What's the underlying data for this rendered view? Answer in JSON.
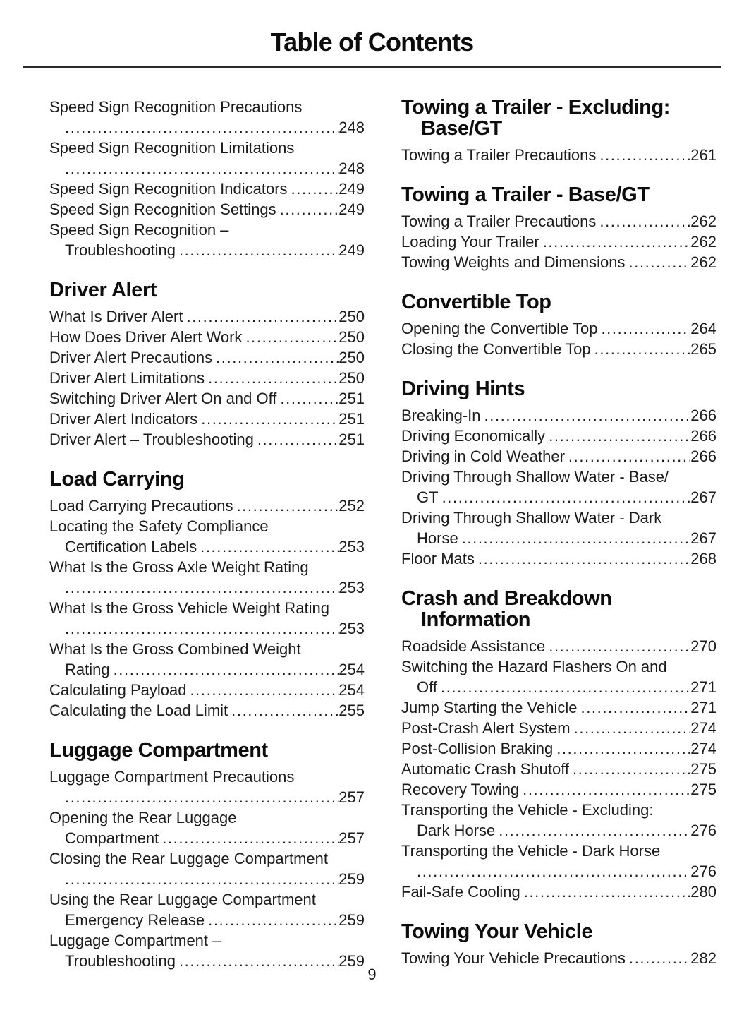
{
  "page": {
    "title": "Table of Contents",
    "page_number": "9",
    "text_color": "#1c1c1c"
  },
  "columns": [
    {
      "sections": [
        {
          "heading": null,
          "entries": [
            {
              "line1": "Speed Sign Recognition Precautions",
              "line2": "",
              "page": "248"
            },
            {
              "line1": "Speed Sign Recognition Limitations",
              "line2": "",
              "page": "248"
            },
            {
              "line1": "Speed Sign Recognition Indicators",
              "page": "249"
            },
            {
              "line1": "Speed Sign Recognition Settings",
              "page": "249"
            },
            {
              "line1": "Speed Sign Recognition –",
              "line2": "Troubleshooting",
              "page": "249"
            }
          ]
        },
        {
          "heading": [
            "Driver Alert"
          ],
          "entries": [
            {
              "line1": "What Is Driver Alert",
              "page": "250"
            },
            {
              "line1": "How Does Driver Alert Work",
              "page": "250"
            },
            {
              "line1": "Driver Alert Precautions",
              "page": "250"
            },
            {
              "line1": "Driver Alert Limitations",
              "page": "250"
            },
            {
              "line1": "Switching Driver Alert On and Off",
              "page": "251"
            },
            {
              "line1": "Driver Alert Indicators",
              "page": "251"
            },
            {
              "line1": "Driver Alert – Troubleshooting",
              "page": "251"
            }
          ]
        },
        {
          "heading": [
            "Load Carrying"
          ],
          "entries": [
            {
              "line1": "Load Carrying Precautions",
              "page": "252"
            },
            {
              "line1": "Locating the Safety Compliance",
              "line2": "Certification Labels",
              "page": "253"
            },
            {
              "line1": "What Is the Gross Axle Weight Rating",
              "line2": "",
              "page": "253"
            },
            {
              "line1": "What Is the Gross Vehicle Weight Rating",
              "line2": "",
              "page": "253"
            },
            {
              "line1": "What Is the Gross Combined Weight",
              "line2": "Rating",
              "page": "254"
            },
            {
              "line1": "Calculating Payload",
              "page": "254"
            },
            {
              "line1": "Calculating the Load Limit",
              "page": "255"
            }
          ]
        },
        {
          "heading": [
            "Luggage Compartment"
          ],
          "entries": [
            {
              "line1": "Luggage Compartment Precautions",
              "line2": "",
              "page": "257"
            },
            {
              "line1": "Opening the Rear Luggage",
              "line2": "Compartment",
              "page": "257"
            },
            {
              "line1": "Closing the Rear Luggage Compartment",
              "line2": "",
              "page": "259"
            },
            {
              "line1": "Using the Rear Luggage Compartment",
              "line2": "Emergency Release",
              "page": "259"
            },
            {
              "line1": "Luggage Compartment –",
              "line2": "Troubleshooting",
              "page": "259"
            }
          ]
        }
      ]
    },
    {
      "sections": [
        {
          "heading": [
            "Towing a Trailer - Excluding:",
            "Base/GT"
          ],
          "entries": [
            {
              "line1": "Towing a Trailer Precautions",
              "page": "261"
            }
          ]
        },
        {
          "heading": [
            "Towing a Trailer - Base/GT"
          ],
          "entries": [
            {
              "line1": "Towing a Trailer Precautions",
              "page": "262"
            },
            {
              "line1": "Loading Your Trailer",
              "page": "262"
            },
            {
              "line1": "Towing Weights and Dimensions",
              "page": "262"
            }
          ]
        },
        {
          "heading": [
            "Convertible Top"
          ],
          "entries": [
            {
              "line1": "Opening the Convertible Top",
              "page": "264"
            },
            {
              "line1": "Closing the Convertible Top",
              "page": "265"
            }
          ]
        },
        {
          "heading": [
            "Driving Hints"
          ],
          "entries": [
            {
              "line1": "Breaking-In",
              "page": "266"
            },
            {
              "line1": "Driving Economically",
              "page": "266"
            },
            {
              "line1": "Driving in Cold Weather",
              "page": "266"
            },
            {
              "line1": "Driving Through Shallow Water - Base/",
              "line2": "GT",
              "page": "267"
            },
            {
              "line1": "Driving Through Shallow Water - Dark",
              "line2": "Horse",
              "page": "267"
            },
            {
              "line1": "Floor Mats",
              "page": "268"
            }
          ]
        },
        {
          "heading": [
            "Crash and Breakdown",
            "Information"
          ],
          "entries": [
            {
              "line1": "Roadside Assistance",
              "page": "270"
            },
            {
              "line1": "Switching the Hazard Flashers On and",
              "line2": "Off",
              "page": "271"
            },
            {
              "line1": "Jump Starting the Vehicle",
              "page": "271"
            },
            {
              "line1": "Post-Crash Alert System",
              "page": "274"
            },
            {
              "line1": "Post-Collision Braking",
              "page": "274"
            },
            {
              "line1": "Automatic Crash Shutoff",
              "page": "275"
            },
            {
              "line1": "Recovery Towing",
              "page": "275"
            },
            {
              "line1": "Transporting the Vehicle - Excluding:",
              "line2": "Dark Horse",
              "page": "276"
            },
            {
              "line1": "Transporting the Vehicle - Dark Horse",
              "line2": "",
              "page": "276"
            },
            {
              "line1": "Fail-Safe Cooling",
              "page": "280"
            }
          ]
        },
        {
          "heading": [
            "Towing Your Vehicle"
          ],
          "entries": [
            {
              "line1": "Towing Your Vehicle Precautions",
              "page": "282"
            }
          ]
        }
      ]
    }
  ]
}
